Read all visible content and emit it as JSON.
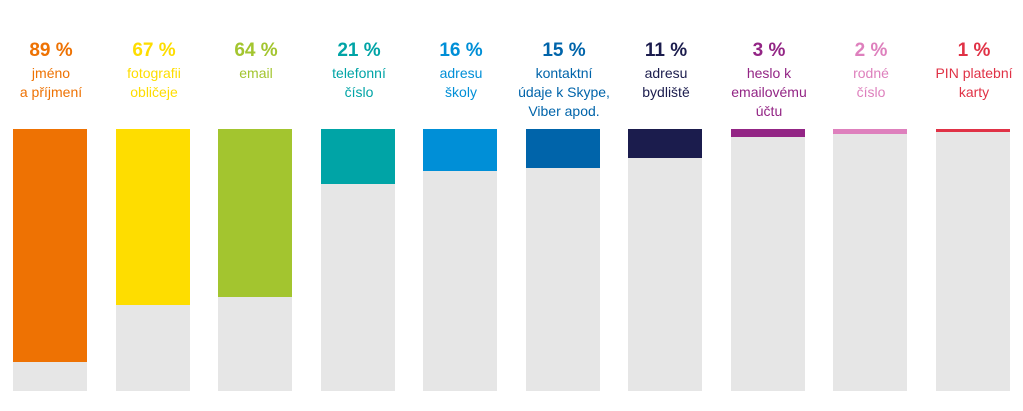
{
  "chart_data": {
    "type": "bar",
    "orientation": "vertical",
    "ylim": [
      0,
      100
    ],
    "unit": "%",
    "grid": false,
    "legend": "none",
    "bar_background_color": "#e6e6e6",
    "bars": [
      {
        "value": 89,
        "value_label": "89 %",
        "label_lines": [
          "jméno",
          "a příjmení"
        ],
        "color": "#ee7203"
      },
      {
        "value": 67,
        "value_label": "67 %",
        "label_lines": [
          "fotografii",
          "obličeje"
        ],
        "color": "#fedd00"
      },
      {
        "value": 64,
        "value_label": "64 %",
        "label_lines": [
          "email"
        ],
        "color": "#a3c52f"
      },
      {
        "value": 21,
        "value_label": "21 %",
        "label_lines": [
          "telefonní",
          "číslo"
        ],
        "color": "#00a4a6"
      },
      {
        "value": 16,
        "value_label": "16 %",
        "label_lines": [
          "adresu",
          "školy"
        ],
        "color": "#008fd7"
      },
      {
        "value": 15,
        "value_label": "15 %",
        "label_lines": [
          "kontaktní",
          "údaje k Skype,",
          "Viber apod."
        ],
        "color": "#0064aa"
      },
      {
        "value": 11,
        "value_label": "11 %",
        "label_lines": [
          "adresu",
          "bydliště"
        ],
        "color": "#1b1c4d"
      },
      {
        "value": 3,
        "value_label": "3 %",
        "label_lines": [
          "heslo k",
          "emailovému",
          "účtu"
        ],
        "color": "#932585"
      },
      {
        "value": 2,
        "value_label": "2 %",
        "label_lines": [
          "rodné",
          "číslo"
        ],
        "color": "#de80bd"
      },
      {
        "value": 1,
        "value_label": "1 %",
        "label_lines": [
          "PIN platební",
          "karty"
        ],
        "color": "#e03246"
      }
    ]
  }
}
